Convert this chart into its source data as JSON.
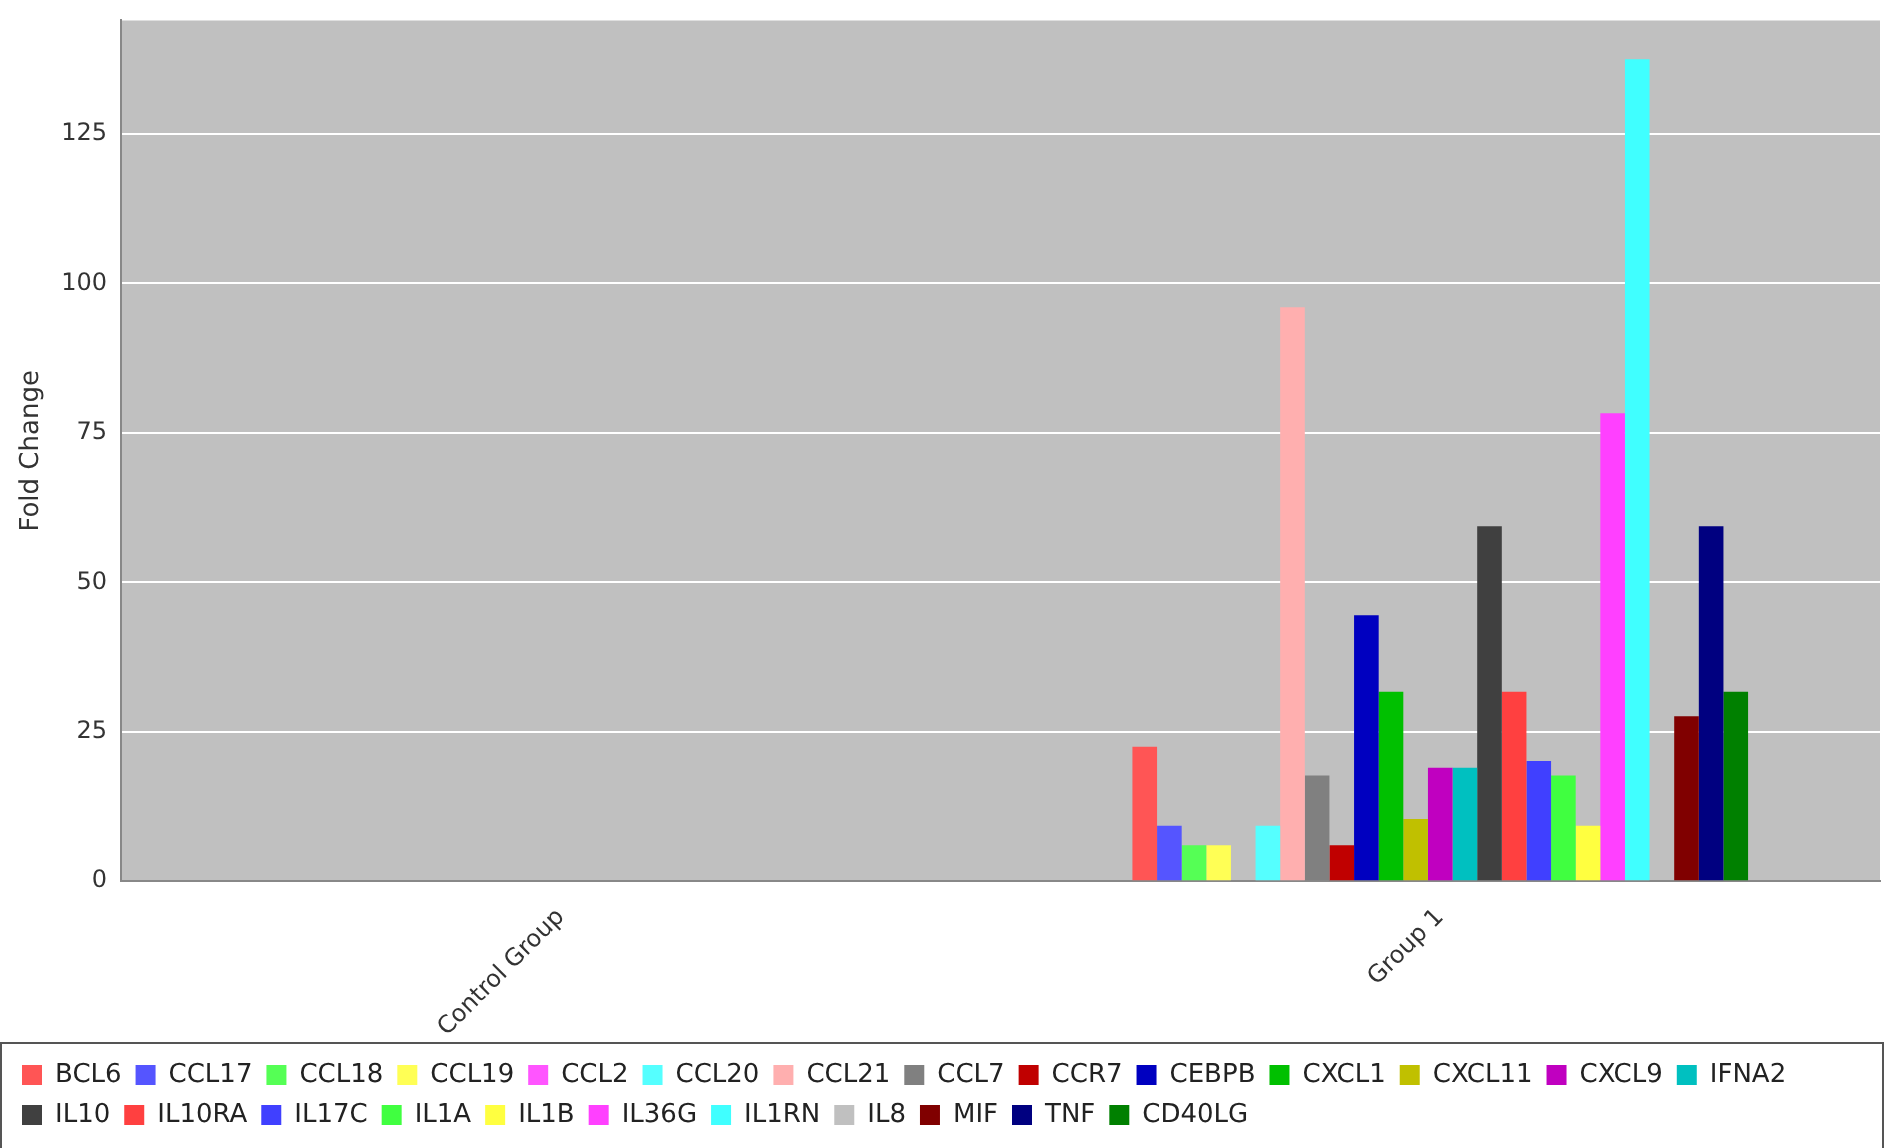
{
  "chart_data": {
    "type": "bar",
    "ylabel": "Fold Change",
    "categories": [
      "Control Group",
      "Group 1"
    ],
    "ylim": [
      0,
      144
    ],
    "yticks": [
      0,
      25,
      50,
      75,
      100,
      125
    ],
    "grid": "y",
    "legend": "bottom",
    "series": [
      {
        "name": "BCL6",
        "color": "#ff5555",
        "values": [
          0,
          22.5
        ]
      },
      {
        "name": "CCL17",
        "color": "#5555ff",
        "values": [
          0,
          9.3
        ]
      },
      {
        "name": "CCL18",
        "color": "#55ff55",
        "values": [
          0,
          6
        ]
      },
      {
        "name": "CCL19",
        "color": "#ffff55",
        "values": [
          0,
          6
        ]
      },
      {
        "name": "CCL2",
        "color": "#ff55ff",
        "values": [
          0,
          0
        ]
      },
      {
        "name": "CCL20",
        "color": "#55ffff",
        "values": [
          0,
          9.3
        ]
      },
      {
        "name": "CCL21",
        "color": "#ffafaf",
        "values": [
          0,
          96
        ]
      },
      {
        "name": "CCL7",
        "color": "#808080",
        "values": [
          0,
          17.7
        ]
      },
      {
        "name": "CCR7",
        "color": "#c00000",
        "values": [
          0,
          6
        ]
      },
      {
        "name": "CEBPB",
        "color": "#0000c0",
        "values": [
          0,
          44.5
        ]
      },
      {
        "name": "CXCL1",
        "color": "#00c000",
        "values": [
          0,
          31.7
        ]
      },
      {
        "name": "CXCL11",
        "color": "#c0c000",
        "values": [
          0,
          10.4
        ]
      },
      {
        "name": "CXCL9",
        "color": "#c000c0",
        "values": [
          0,
          19
        ]
      },
      {
        "name": "IFNA2",
        "color": "#00c0c0",
        "values": [
          0,
          19
        ]
      },
      {
        "name": "IL10",
        "color": "#404040",
        "values": [
          0,
          59.4
        ]
      },
      {
        "name": "IL10RA",
        "color": "#ff4040",
        "values": [
          0,
          31.7
        ]
      },
      {
        "name": "IL17C",
        "color": "#4040ff",
        "values": [
          0,
          20.1
        ]
      },
      {
        "name": "IL1A",
        "color": "#40ff40",
        "values": [
          0,
          17.7
        ]
      },
      {
        "name": "IL1B",
        "color": "#ffff40",
        "values": [
          0,
          9.3
        ]
      },
      {
        "name": "IL36G",
        "color": "#ff40ff",
        "values": [
          0,
          78.3
        ]
      },
      {
        "name": "IL1RN",
        "color": "#40ffff",
        "values": [
          0,
          137.5
        ]
      },
      {
        "name": "IL8",
        "color": "#c0c0c0",
        "values": [
          0,
          0
        ]
      },
      {
        "name": "MIF",
        "color": "#800000",
        "values": [
          0,
          27.6
        ]
      },
      {
        "name": "TNF",
        "color": "#000080",
        "values": [
          0,
          59.4
        ]
      },
      {
        "name": "CD40LG",
        "color": "#008000",
        "values": [
          0,
          31.7
        ]
      }
    ]
  }
}
